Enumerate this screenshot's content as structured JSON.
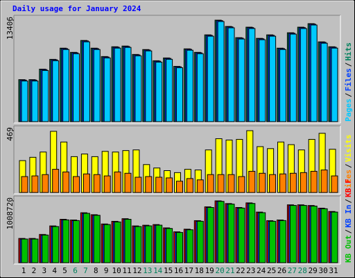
{
  "chart_data": {
    "type": "bar",
    "title": "Daily usage for January 2024",
    "categories": [
      "1",
      "2",
      "3",
      "4",
      "5",
      "6",
      "7",
      "8",
      "9",
      "10",
      "11",
      "12",
      "13",
      "14",
      "15",
      "16",
      "17",
      "18",
      "19",
      "20",
      "21",
      "22",
      "23",
      "24",
      "25",
      "26",
      "27",
      "28",
      "29",
      "30",
      "31"
    ],
    "weekend_indices": [
      5,
      6,
      12,
      13,
      19,
      20,
      26,
      27
    ],
    "weekend_color": "#00805c",
    "separator": "/",
    "panels": [
      {
        "ylim": [
          0,
          13406
        ],
        "yticks": [
          13406
        ],
        "series": [
          {
            "name": "Hits",
            "color": "#00805c",
            "values": [
              5548,
              5548,
              6935,
              8229,
              9708,
              9153,
              10725,
              9708,
              8599,
              9893,
              9986,
              8876,
              9523,
              8044,
              8414,
              7304,
              9616,
              9153,
              11465,
              13406,
              12575,
              11095,
              12482,
              11003,
              11465,
              9708,
              11742,
              12482,
              12944,
              10540,
              9893
            ]
          },
          {
            "name": "Files",
            "color": "#0040ff",
            "values": [
              5488,
              5488,
              6875,
              8169,
              9648,
              9093,
              10665,
              9648,
              8539,
              9833,
              9926,
              8816,
              9463,
              7984,
              8354,
              7244,
              9556,
              9093,
              11405,
              13346,
              12515,
              11035,
              12422,
              10943,
              11405,
              9648,
              11682,
              12422,
              12884,
              10480,
              9833
            ]
          },
          {
            "name": "Pages",
            "color": "#00c8ff",
            "values": [
              5368,
              5368,
              6755,
              8049,
              9528,
              8973,
              10545,
              9528,
              8419,
              9713,
              9806,
              8696,
              9343,
              7864,
              8234,
              7124,
              9436,
              8973,
              11285,
              13226,
              12395,
              10915,
              12302,
              10823,
              11285,
              9528,
              11562,
              12302,
              12764,
              10360,
              9713
            ]
          }
        ]
      },
      {
        "ylim": [
          0,
          469
        ],
        "yticks": [
          469
        ],
        "series": [
          {
            "name": "Visits",
            "color": "#ffff00",
            "values": [
              242,
              267,
              307,
              464,
              383,
              272,
              292,
              272,
              312,
              307,
              318,
              323,
              212,
              186,
              166,
              151,
              176,
              171,
              323,
              408,
              398,
              403,
              469,
              348,
              333,
              383,
              363,
              323,
              403,
              449,
              328
            ]
          },
          {
            "name": "Sites",
            "color": "#ff8000",
            "values": [
              121,
              126,
              136,
              176,
              156,
              121,
              141,
              136,
              126,
              156,
              146,
              116,
              121,
              116,
              111,
              86,
              106,
              96,
              136,
              136,
              136,
              121,
              161,
              146,
              136,
              141,
              146,
              151,
              161,
              171,
              126
            ]
          }
        ]
      },
      {
        "ylim": [
          0,
          1008720
        ],
        "yticks": [
          1008720
        ],
        "series": [
          {
            "name": "KB F",
            "color": "#ff0000",
            "values": [
              396000,
              396000,
              461000,
              600000,
              708000,
              697000,
              815000,
              783000,
              632000,
              675000,
              718000,
              600000,
              611000,
              622000,
              568000,
              504000,
              547000,
              686000,
              911000,
              1008720,
              965000,
              901000,
              976000,
              826000,
              686000,
              697000,
              944000,
              944000,
              933000,
              890000,
              836000
            ]
          },
          {
            "name": "KB In",
            "color": "#0040ff",
            "values": [
              386000,
              386000,
              451000,
              590000,
              698000,
              687000,
              805000,
              773000,
              622000,
              665000,
              708000,
              590000,
              601000,
              612000,
              558000,
              494000,
              537000,
              676000,
              901000,
              1000000,
              955000,
              891000,
              966000,
              816000,
              676000,
              687000,
              934000,
              934000,
              923000,
              880000,
              826000
            ]
          },
          {
            "name": "KB Out",
            "color": "#00c000",
            "values": [
              386000,
              386000,
              451000,
              590000,
              698000,
              687000,
              805000,
              773000,
              622000,
              665000,
              708000,
              590000,
              601000,
              612000,
              558000,
              494000,
              537000,
              676000,
              901000,
              1000000,
              955000,
              891000,
              966000,
              816000,
              676000,
              687000,
              934000,
              934000,
              923000,
              880000,
              826000
            ]
          }
        ]
      }
    ]
  }
}
